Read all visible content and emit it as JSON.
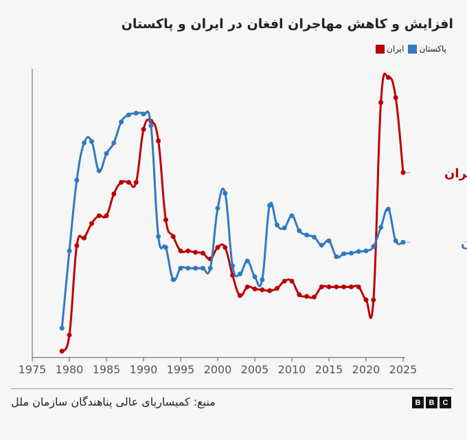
{
  "title": "افزایش و کاهش مهاجران افغان در ایران و پاکستان",
  "legend": [
    {
      "label": "پاکستان",
      "color": "#2f7ac0"
    },
    {
      "label": "ایران",
      "color": "#bb0000"
    }
  ],
  "source": "منبع: کمیساریای عالی پناهندگان سازمان ملل",
  "logo": "BBC",
  "chart_data": {
    "type": "line",
    "title": "افزایش و کاهش مهاجران افغان در ایران و پاکستان",
    "xlabel": "",
    "ylabel": "",
    "xlim": [
      1975,
      2025
    ],
    "ylim": [
      0,
      105
    ],
    "x_ticks": [
      "1975",
      "1980",
      "1985",
      "1990",
      "1995",
      "2000",
      "2005",
      "2010",
      "2015",
      "2020",
      "2025"
    ],
    "y_ticks_shown": false,
    "grid": false,
    "legend_placement": "top-right",
    "x": [
      1979,
      1980,
      1981,
      1982,
      1983,
      1984,
      1985,
      1986,
      1987,
      1988,
      1989,
      1990,
      1991,
      1992,
      1993,
      1994,
      1995,
      1996,
      1997,
      1998,
      1999,
      2000,
      2001,
      2002,
      2003,
      2004,
      2005,
      2006,
      2007,
      2008,
      2009,
      2010,
      2011,
      2012,
      2013,
      2014,
      2015,
      2016,
      2017,
      2018,
      2019,
      2020,
      2021,
      2022,
      2023,
      2024,
      2025
    ],
    "series": [
      {
        "name": "ایران",
        "color": "#bb0000",
        "values": [
          2.2,
          7.8,
          38.8,
          41.5,
          46.5,
          49.2,
          49.2,
          56.8,
          60.8,
          60.8,
          60.8,
          79.2,
          82,
          75.2,
          47.8,
          42,
          37,
          37,
          36.5,
          36.2,
          34.2,
          38.2,
          38.2,
          28.5,
          21.5,
          24.5,
          23.8,
          23.5,
          23.2,
          24,
          26.5,
          26.5,
          21.8,
          21.2,
          21,
          24.5,
          24.5,
          24.5,
          24.5,
          24.5,
          24.5,
          20,
          20,
          88.5,
          97.2,
          90.2,
          64.2
        ]
      },
      {
        "name": "پاکستان",
        "color": "#2f7ac0",
        "values": [
          10.2,
          37,
          61.5,
          74.5,
          75,
          64.8,
          70.8,
          74.5,
          81.8,
          84.2,
          84.8,
          84.5,
          80.5,
          42,
          38.2,
          27,
          31,
          31,
          31,
          31,
          31,
          51.8,
          57,
          31.8,
          29,
          33.5,
          28,
          27,
          52.8,
          46,
          45,
          49.2,
          44,
          42.5,
          41.8,
          39,
          40.5,
          35,
          36,
          36.2,
          36.8,
          37,
          38.5,
          45.2,
          51.5,
          40.5,
          40
        ]
      }
    ]
  }
}
